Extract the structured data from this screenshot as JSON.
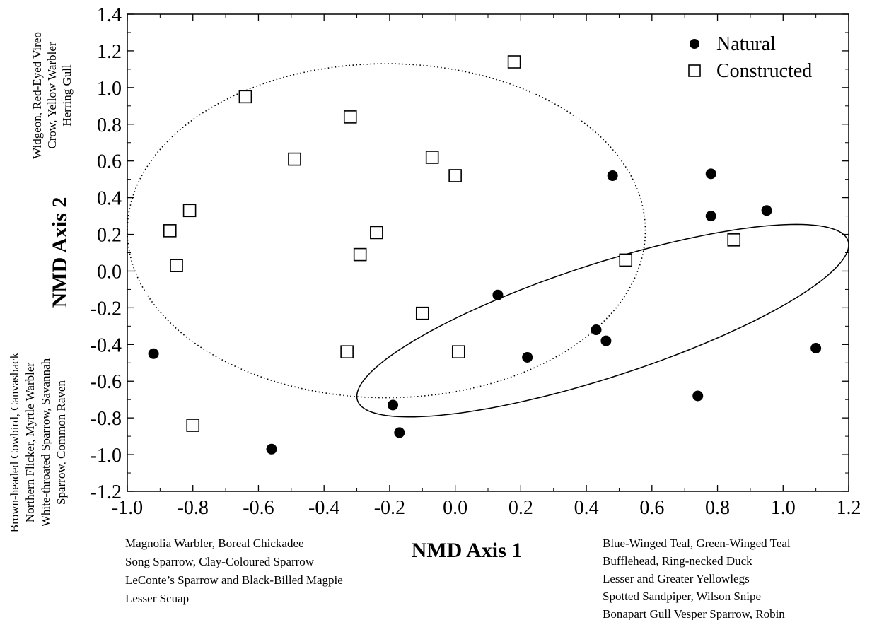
{
  "chart_data": {
    "type": "scatter",
    "xlabel": "NMD Axis 1",
    "ylabel": "NMD Axis 2",
    "xlim": [
      -1.0,
      1.2
    ],
    "ylim": [
      -1.2,
      1.4
    ],
    "x_ticks": [
      "-1.0",
      "-0.8",
      "-0.6",
      "-0.4",
      "-0.2",
      "0.0",
      "0.2",
      "0.4",
      "0.6",
      "0.8",
      "1.0",
      "1.2"
    ],
    "y_ticks": [
      "1.4",
      "1.2",
      "1.0",
      "0.8",
      "0.6",
      "0.4",
      "0.2",
      "0.0",
      "-0.2",
      "-0.4",
      "-0.6",
      "-0.8",
      "-1.0",
      "-1.2"
    ],
    "grid": false,
    "legend_position": "top-right",
    "series": [
      {
        "name": "Natural",
        "marker": "filled-circle",
        "color": "#000000",
        "points": [
          {
            "x": 0.48,
            "y": 0.52
          },
          {
            "x": 0.78,
            "y": 0.53
          },
          {
            "x": 0.78,
            "y": 0.3
          },
          {
            "x": 0.95,
            "y": 0.33
          },
          {
            "x": 0.13,
            "y": -0.13
          },
          {
            "x": 0.43,
            "y": -0.32
          },
          {
            "x": 0.46,
            "y": -0.38
          },
          {
            "x": 0.22,
            "y": -0.47
          },
          {
            "x": -0.92,
            "y": -0.45
          },
          {
            "x": -0.19,
            "y": -0.73
          },
          {
            "x": -0.17,
            "y": -0.88
          },
          {
            "x": -0.56,
            "y": -0.97
          },
          {
            "x": 0.74,
            "y": -0.68
          },
          {
            "x": 1.1,
            "y": -0.42
          }
        ]
      },
      {
        "name": "Constructed",
        "marker": "open-square",
        "color": "#000000",
        "points": [
          {
            "x": 0.18,
            "y": 1.14
          },
          {
            "x": -0.64,
            "y": 0.95
          },
          {
            "x": -0.32,
            "y": 0.84
          },
          {
            "x": -0.49,
            "y": 0.61
          },
          {
            "x": -0.07,
            "y": 0.62
          },
          {
            "x": 0.0,
            "y": 0.52
          },
          {
            "x": -0.81,
            "y": 0.33
          },
          {
            "x": -0.87,
            "y": 0.22
          },
          {
            "x": -0.24,
            "y": 0.21
          },
          {
            "x": -0.85,
            "y": 0.03
          },
          {
            "x": -0.29,
            "y": 0.09
          },
          {
            "x": 0.52,
            "y": 0.06
          },
          {
            "x": 0.85,
            "y": 0.17
          },
          {
            "x": -0.1,
            "y": -0.23
          },
          {
            "x": -0.33,
            "y": -0.44
          },
          {
            "x": 0.01,
            "y": -0.44
          },
          {
            "x": -0.8,
            "y": -0.84
          }
        ]
      }
    ],
    "ellipses": [
      {
        "series": "Constructed",
        "style": "dotted",
        "cx": -0.21,
        "cy": 0.22,
        "rx": 0.79,
        "ry": 0.91,
        "rotation_deg": 0
      },
      {
        "series": "Natural",
        "style": "solid",
        "cx": 0.45,
        "cy": -0.27,
        "rx": 0.75,
        "ry": 0.72,
        "rotation_deg": 0,
        "tilt": 0.55
      }
    ],
    "annotations": {
      "upper_left": [
        "Widgeon, Red-Eyed Vireo",
        "Crow,  Yellow Warbler",
        "Herring Gull"
      ],
      "lower_left": [
        "Brown-headed Cowbird, Canvasback",
        "Northern Flicker, Myrtle Warbler",
        "White-throated Sparrow, Savannah",
        "Sparrow, Common Raven"
      ],
      "bottom_left": [
        "Magnolia Warbler, Boreal Chickadee",
        "Song Sparrow, Clay-Coloured Sparrow",
        "LeConte’s Sparrow and Black-Billed Magpie",
        "Lesser Scuap"
      ],
      "bottom_right": [
        "Blue-Winged Teal, Green-Winged Teal",
        "Bufflehead, Ring-necked Duck",
        "Lesser and Greater Yellowlegs",
        "Spotted Sandpiper, Wilson Snipe",
        "Bonapart Gull Vesper Sparrow, Robin"
      ]
    }
  }
}
